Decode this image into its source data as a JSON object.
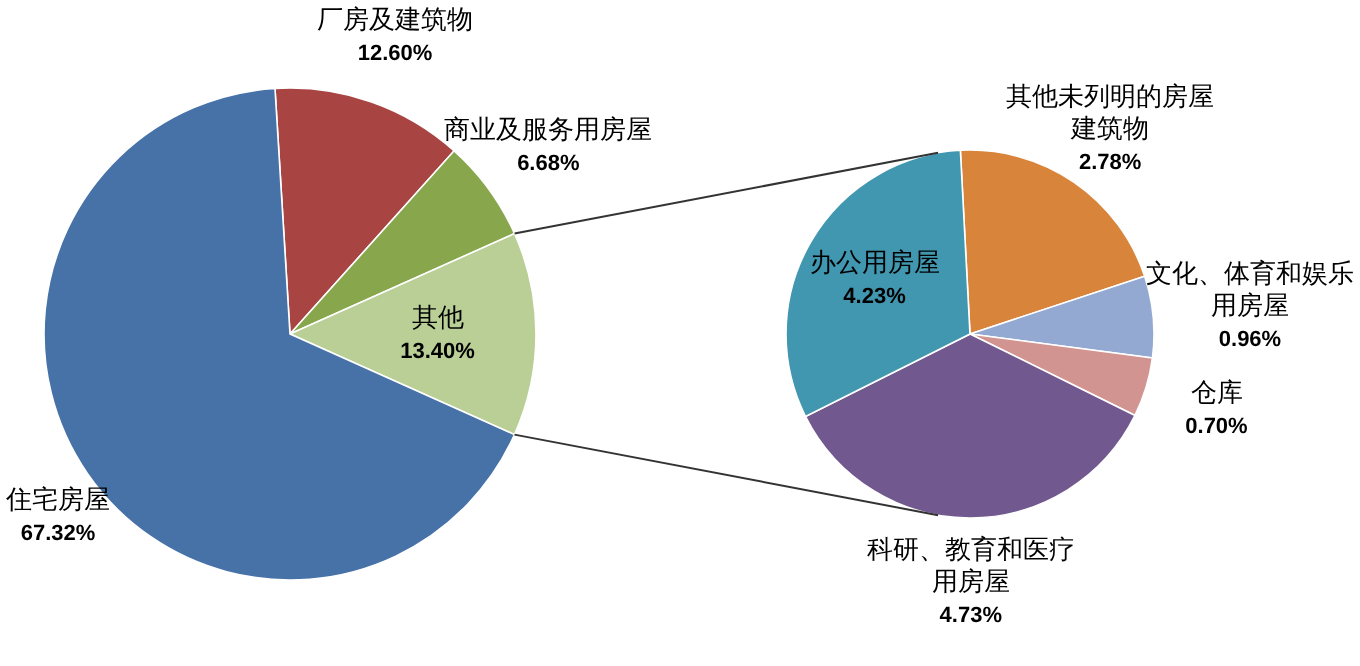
{
  "chart_data": [
    {
      "type": "pie",
      "categories": [
        "厂房及建筑物",
        "商业及服务用房屋",
        "其他",
        "住宅房屋"
      ],
      "values": [
        12.6,
        6.68,
        13.4,
        67.32
      ],
      "colors": [
        "#a84543",
        "#88a64c",
        "#b9cf96",
        "#4672a8"
      ],
      "value_labels": [
        "12.60%",
        "6.68%",
        "13.40%",
        "67.32%"
      ]
    },
    {
      "type": "pie",
      "categories": [
        "其他未列明的房屋建筑物",
        "文化、体育和娱乐用房屋",
        "仓库",
        "科研、教育和医疗用房屋",
        "办公用房屋"
      ],
      "values": [
        2.78,
        0.96,
        0.7,
        4.73,
        4.23
      ],
      "colors": [
        "#d9843b",
        "#93a9d1",
        "#d29491",
        "#71588f",
        "#4197b0"
      ],
      "value_labels": [
        "2.78%",
        "0.96%",
        "0.70%",
        "4.73%",
        "4.23%"
      ]
    }
  ]
}
